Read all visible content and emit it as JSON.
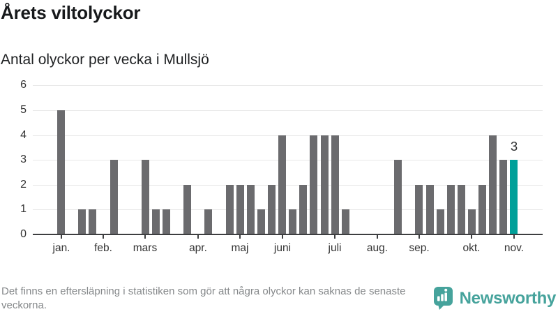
{
  "header": {
    "title": "Årets viltolyckor",
    "subtitle": "Antal olyckor per vecka i Mullsjö"
  },
  "chart_data": {
    "type": "bar",
    "title": "Årets viltolyckor",
    "subtitle": "Antal olyckor per vecka i Mullsjö",
    "xlabel": "",
    "ylabel": "",
    "ylim": [
      0,
      6
    ],
    "grid": "horizontal",
    "x_unit": "vecka",
    "weeks": 44,
    "values": [
      5,
      0,
      1,
      1,
      0,
      3,
      0,
      0,
      3,
      1,
      1,
      0,
      2,
      0,
      1,
      0,
      2,
      2,
      2,
      1,
      2,
      4,
      1,
      2,
      4,
      4,
      4,
      1,
      0,
      0,
      0,
      0,
      3,
      0,
      2,
      2,
      1,
      2,
      2,
      1,
      2,
      4,
      3,
      3
    ],
    "y_ticks": [
      0,
      1,
      2,
      3,
      4,
      5,
      6
    ],
    "month_ticks": [
      {
        "label": "jan.",
        "week": 1
      },
      {
        "label": "feb.",
        "week": 5
      },
      {
        "label": "mars",
        "week": 9
      },
      {
        "label": "apr.",
        "week": 14
      },
      {
        "label": "maj",
        "week": 18
      },
      {
        "label": "juni",
        "week": 22
      },
      {
        "label": "juli",
        "week": 27
      },
      {
        "label": "aug.",
        "week": 31
      },
      {
        "label": "sep.",
        "week": 35
      },
      {
        "label": "okt.",
        "week": 40
      },
      {
        "label": "nov.",
        "week": 44
      }
    ],
    "highlight_week": 44,
    "highlight_value_label": "3",
    "colors": {
      "bar": "#6b6b6e",
      "highlight": "#00a099",
      "axis": "#3d3e40",
      "grid": "#e8e8e8",
      "tick_label": "#333333"
    }
  },
  "footer": {
    "note": "Det finns en eftersläpning i statistiken som gör att några olyckor kan saknas de senaste veckorna.",
    "brand": "Newsworthy",
    "brand_color": "#46a39c",
    "icon": "newsworthy-speech-bubble-bar-chart-icon"
  }
}
